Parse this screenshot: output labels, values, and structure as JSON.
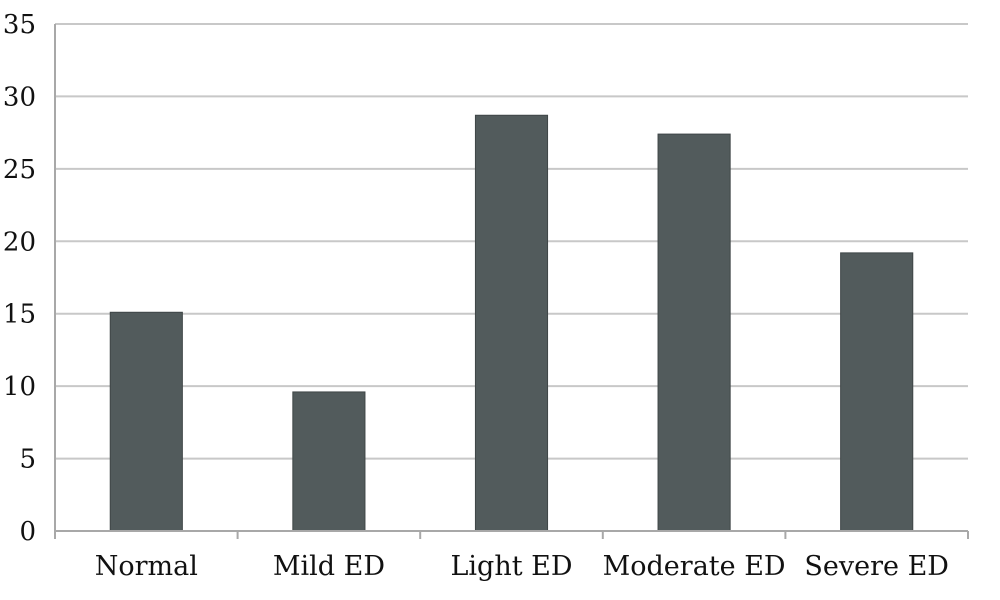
{
  "chart_data": {
    "type": "bar",
    "title": "",
    "xlabel": "",
    "ylabel": "",
    "categories": [
      "Normal",
      "Mild ED",
      "Light ED",
      "Moderate ED",
      "Severe ED"
    ],
    "values": [
      15.1,
      9.6,
      28.7,
      27.4,
      19.2
    ],
    "ylim": [
      0,
      35
    ],
    "yticks": [
      0,
      5,
      10,
      15,
      20,
      25,
      30,
      35
    ],
    "ytick_labels": [
      "0",
      "5",
      "10",
      "15",
      "20",
      "25",
      "30",
      "35"
    ],
    "grid": true,
    "legend": "none",
    "bar_color": "#525b5c"
  }
}
